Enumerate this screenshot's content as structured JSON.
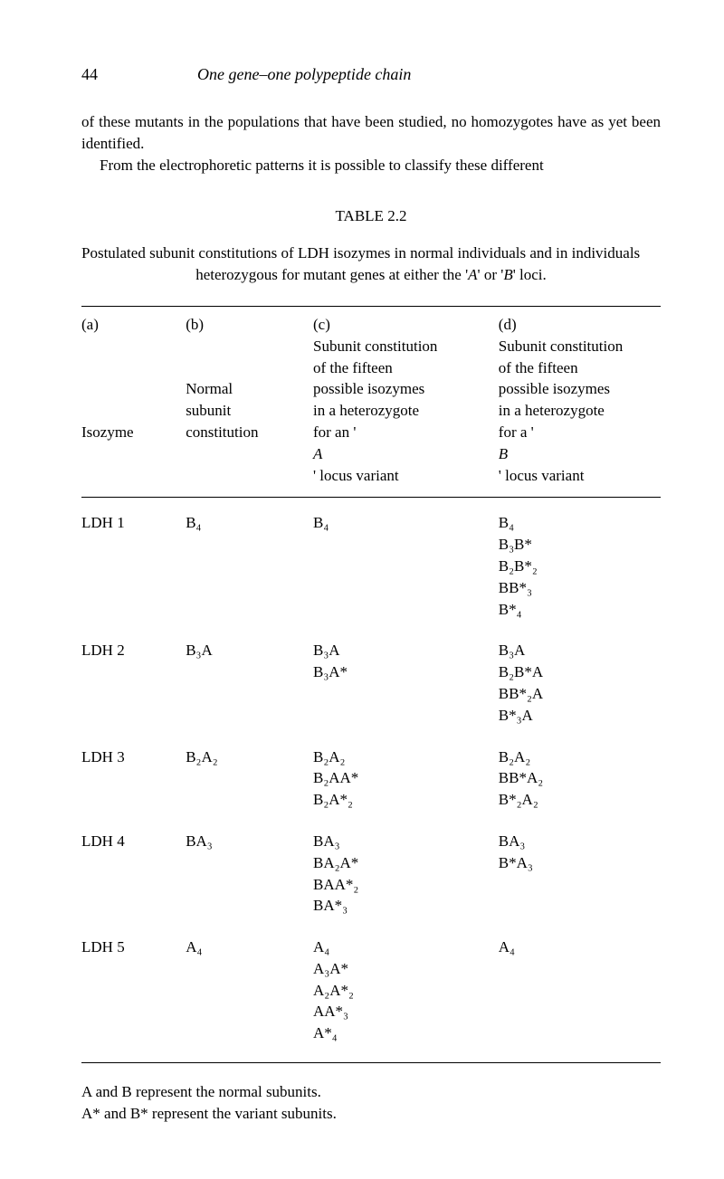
{
  "page_number": "44",
  "chapter_title": "One gene–one polypeptide chain",
  "paragraph_1": "of these mutants in the populations that have been studied, no homozygotes have as yet been identified.",
  "paragraph_2": "From the electrophoretic patterns it is possible to classify these different",
  "table_label": "TABLE 2.2",
  "table_caption_line1": "Postulated subunit constitutions of LDH isozymes in normal individuals and in individuals",
  "table_caption_line2_prefix": "heterozygous for mutant genes at either the '",
  "table_caption_A": "A",
  "table_caption_mid": "' or '",
  "table_caption_B": "B",
  "table_caption_suffix": "' loci.",
  "headers": {
    "a": {
      "label": "(a)",
      "lines": [
        "",
        "",
        "",
        "",
        "Isozyme"
      ]
    },
    "b": {
      "label": "(b)",
      "lines": [
        "",
        "",
        "Normal",
        "subunit",
        "constitution"
      ]
    },
    "c": {
      "label": "(c)",
      "lines_pre": "Subunit constitution",
      "lines": [
        "of the fifteen",
        "possible isozymes",
        "in a heterozygote"
      ],
      "last_prefix": "for an '",
      "last_italic": "A",
      "last_suffix": "' locus variant"
    },
    "d": {
      "label": "(d)",
      "lines_pre": "Subunit constitution",
      "lines": [
        "of the fifteen",
        "possible isozymes",
        "in a heterozygote"
      ],
      "last_prefix": "for a '",
      "last_italic": "B",
      "last_suffix": "' locus variant"
    }
  },
  "rows": [
    {
      "isozyme": "LDH 1",
      "normal": "B₄",
      "colC": [
        "B₄"
      ],
      "colD": [
        "B₄",
        "B₃B*",
        "B₂B*₂",
        "BB*₃",
        "B*₄"
      ]
    },
    {
      "isozyme": "LDH 2",
      "normal": "B₃A",
      "colC": [
        "B₃A",
        "B₃A*"
      ],
      "colD": [
        "B₃A",
        "B₂B*A",
        "BB*₂A",
        "B*₃A"
      ]
    },
    {
      "isozyme": "LDH 3",
      "normal": "B₂A₂",
      "colC": [
        "B₂A₂",
        "B₂AA*",
        "B₂A*₂"
      ],
      "colD": [
        "B₂A₂",
        "BB*A₂",
        "B*₂A₂"
      ]
    },
    {
      "isozyme": "LDH 4",
      "normal": "BA₃",
      "colC": [
        "BA₃",
        "BA₂A*",
        "BAA*₂",
        "BA*₃"
      ],
      "colD": [
        "BA₃",
        "B*A₃"
      ]
    },
    {
      "isozyme": "LDH 5",
      "normal": "A₄",
      "colC": [
        "A₄",
        "A₃A*",
        "A₂A*₂",
        "AA*₃",
        "A*₄"
      ],
      "colD": [
        "A₄"
      ]
    }
  ],
  "footer_line1": "A and B represent the normal subunits.",
  "footer_line2": "A* and B* represent the variant subunits."
}
